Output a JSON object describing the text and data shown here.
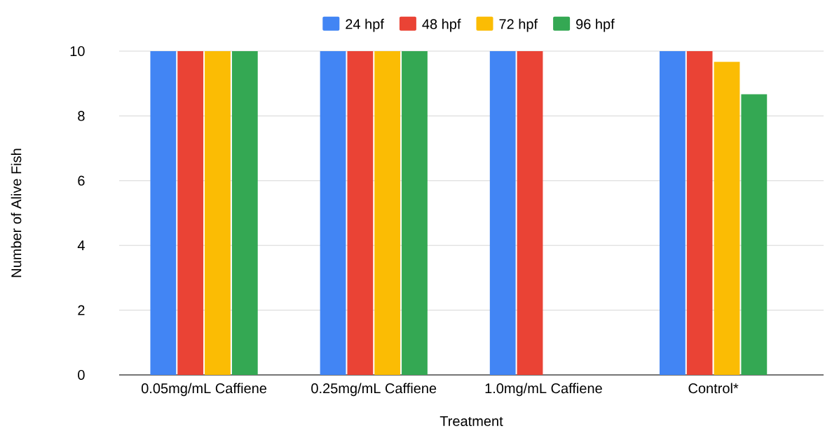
{
  "chart_data": {
    "type": "bar",
    "xlabel": "Treatment",
    "ylabel": "Number of Alive Fish",
    "categories": [
      "0.05mg/mL Caffiene",
      "0.25mg/mL Caffiene",
      "1.0mg/mL Caffiene",
      "Control*"
    ],
    "series": [
      {
        "name": "24 hpf",
        "color": "#4285f4",
        "values": [
          10,
          10,
          10,
          10
        ]
      },
      {
        "name": "48 hpf",
        "color": "#ea4335",
        "values": [
          10,
          10,
          10,
          10
        ]
      },
      {
        "name": "72 hpf",
        "color": "#fbbc04",
        "values": [
          10,
          10,
          0,
          9.67
        ]
      },
      {
        "name": "96 hpf",
        "color": "#34a853",
        "values": [
          10,
          10,
          0,
          8.67
        ]
      }
    ],
    "ylim": [
      0,
      10
    ],
    "yticks": [
      0,
      2,
      4,
      6,
      8,
      10
    ],
    "grid": "y",
    "legend": "top"
  }
}
